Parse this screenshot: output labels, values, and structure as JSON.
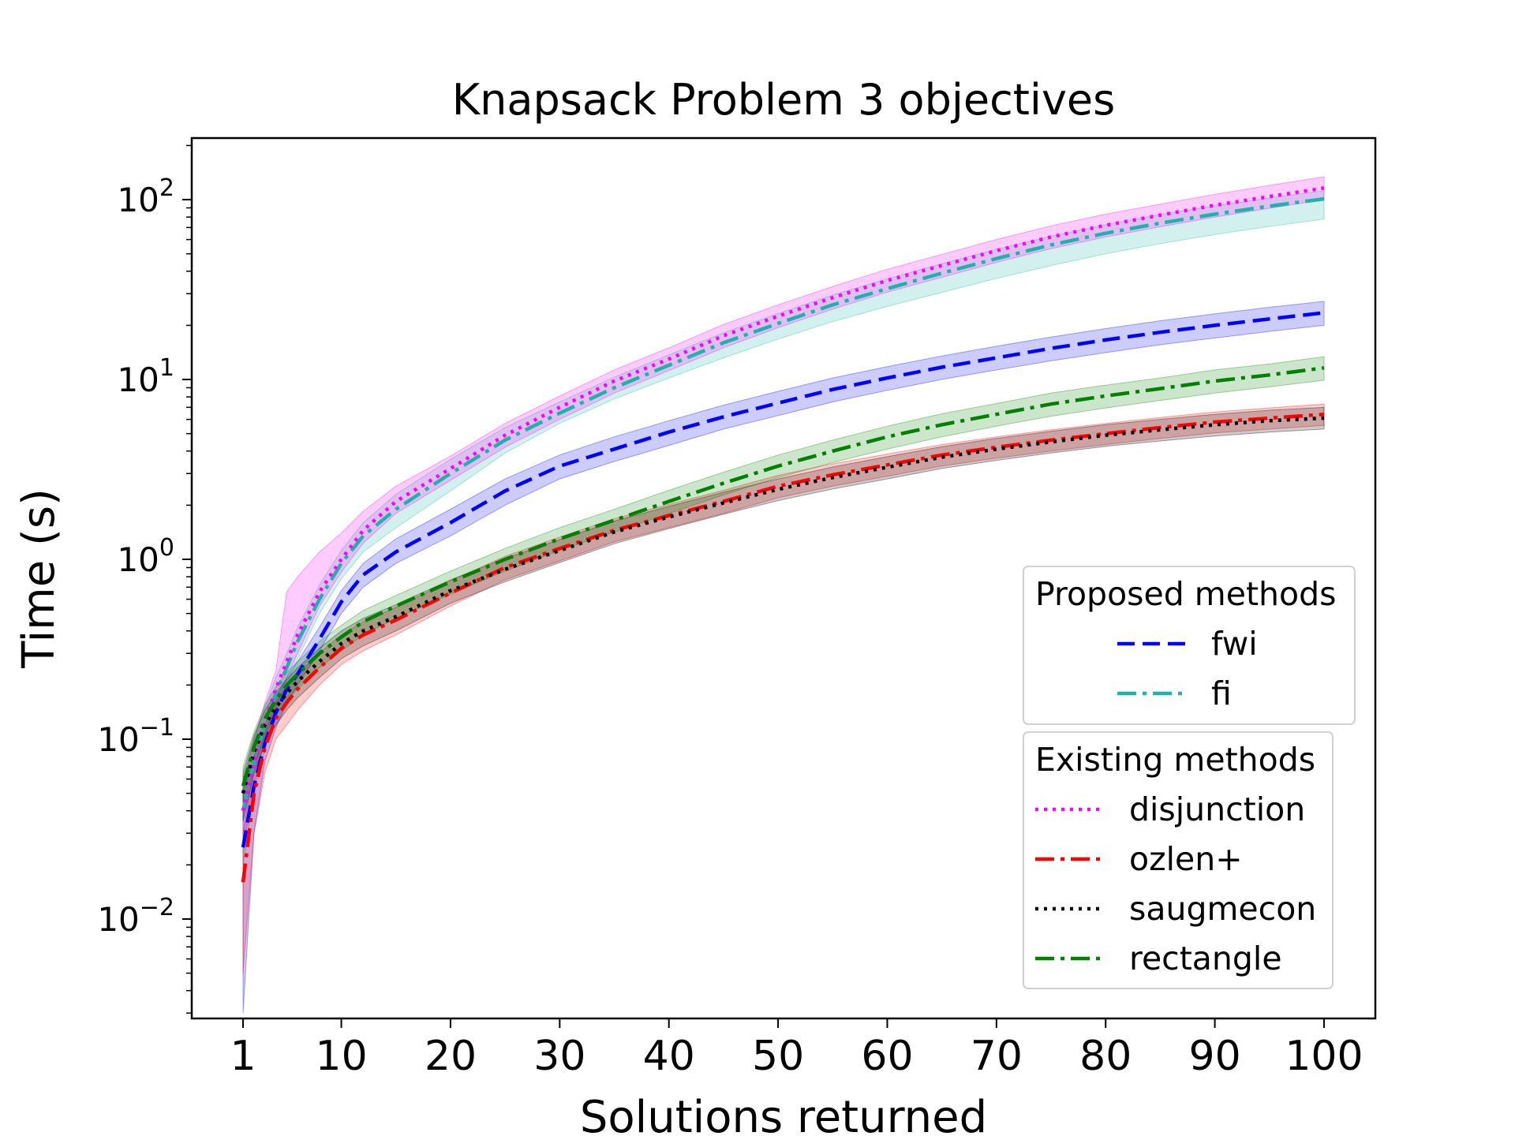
{
  "chart_data": {
    "type": "line",
    "title": "Knapsack Problem 3 objectives",
    "xlabel": "Solutions returned",
    "ylabel": "Time (s)",
    "xlim": [
      -3.7,
      104.7
    ],
    "ylim": [
      0.0028,
      220
    ],
    "yscale": "log",
    "x_ticks": [
      1,
      10,
      20,
      30,
      40,
      50,
      60,
      70,
      80,
      90,
      100
    ],
    "y_ticks": [
      {
        "value": 0.01,
        "base": "10",
        "exp": "−2"
      },
      {
        "value": 0.1,
        "base": "10",
        "exp": "−1"
      },
      {
        "value": 1,
        "base": "10",
        "exp": "0"
      },
      {
        "value": 10,
        "base": "10",
        "exp": "1"
      },
      {
        "value": 100,
        "base": "10",
        "exp": "2"
      }
    ],
    "grid": false,
    "x": [
      1,
      2,
      3,
      4,
      5,
      6,
      8,
      10,
      12,
      15,
      20,
      25,
      30,
      35,
      40,
      45,
      50,
      55,
      60,
      65,
      70,
      75,
      80,
      85,
      90,
      95,
      100
    ],
    "legend_groups": [
      {
        "title": "Proposed methods",
        "series_names": [
          "fwi",
          "fi"
        ]
      },
      {
        "title": "Existing methods",
        "series_names": [
          "disjunction",
          "ozlen+",
          "saugmecon",
          "rectangle"
        ]
      }
    ],
    "series": [
      {
        "name": "fwi",
        "color": "#0000ff",
        "style": "dashed",
        "values": [
          0.025,
          0.055,
          0.095,
          0.14,
          0.19,
          0.23,
          0.36,
          0.58,
          0.82,
          1.1,
          1.6,
          2.4,
          3.3,
          4.1,
          5.1,
          6.2,
          7.4,
          8.8,
          10.2,
          11.7,
          13.2,
          14.9,
          16.6,
          18.3,
          20.0,
          21.7,
          23.5
        ],
        "lower": [
          0.003,
          0.03,
          0.075,
          0.115,
          0.16,
          0.2,
          0.31,
          0.5,
          0.7,
          0.95,
          1.35,
          2.0,
          2.8,
          3.5,
          4.3,
          5.3,
          6.3,
          7.5,
          8.7,
          10.0,
          11.3,
          12.7,
          14.1,
          15.6,
          17.0,
          18.5,
          20.0
        ],
        "upper": [
          0.05,
          0.08,
          0.12,
          0.17,
          0.22,
          0.27,
          0.42,
          0.67,
          0.95,
          1.3,
          1.9,
          2.8,
          3.8,
          4.8,
          5.9,
          7.2,
          8.6,
          10.2,
          11.8,
          13.5,
          15.3,
          17.2,
          19.2,
          21.2,
          23.2,
          25.2,
          27.2
        ]
      },
      {
        "name": "fi",
        "color": "#20b2aa",
        "style": "dashdot",
        "values": [
          0.04,
          0.075,
          0.12,
          0.18,
          0.25,
          0.35,
          0.6,
          0.95,
          1.35,
          1.9,
          3.0,
          4.6,
          6.5,
          9.0,
          12.0,
          16.0,
          20.5,
          26.0,
          32.0,
          39.0,
          47.0,
          56.0,
          65.0,
          74.0,
          83.0,
          92.0,
          101.0
        ],
        "lower": [
          0.02,
          0.05,
          0.09,
          0.14,
          0.2,
          0.28,
          0.5,
          0.78,
          1.1,
          1.5,
          2.4,
          3.9,
          5.7,
          7.8,
          10.2,
          13.2,
          16.8,
          21.0,
          25.5,
          30.5,
          36.5,
          43.0,
          50.0,
          57.0,
          64.0,
          71.0,
          78.0
        ],
        "upper": [
          0.055,
          0.1,
          0.15,
          0.22,
          0.3,
          0.42,
          0.72,
          1.12,
          1.6,
          2.3,
          3.6,
          5.4,
          7.5,
          10.3,
          13.7,
          18.2,
          23.3,
          29.5,
          36.3,
          44.0,
          53.0,
          62.5,
          72.5,
          82.5,
          92.5,
          102.0,
          112.0
        ]
      },
      {
        "name": "disjunction",
        "color": "#ff00ff",
        "style": "dotted",
        "values": [
          0.04,
          0.075,
          0.125,
          0.19,
          0.27,
          0.38,
          0.66,
          1.0,
          1.45,
          2.1,
          3.2,
          4.9,
          7.0,
          9.8,
          13.0,
          17.5,
          22.5,
          28.5,
          35.5,
          43.0,
          52.0,
          62.0,
          72.0,
          82.0,
          93.0,
          104.0,
          116.0
        ],
        "lower": [
          0.025,
          0.055,
          0.1,
          0.15,
          0.22,
          0.3,
          0.55,
          0.85,
          1.23,
          1.8,
          2.75,
          4.2,
          6.0,
          8.4,
          11.2,
          15.0,
          19.4,
          24.6,
          30.6,
          37.0,
          44.8,
          53.4,
          62.0,
          70.6,
          80.0,
          89.5,
          100.0
        ],
        "upper": [
          0.06,
          0.1,
          0.16,
          0.24,
          0.66,
          0.8,
          1.1,
          1.4,
          1.85,
          2.55,
          3.75,
          5.7,
          8.1,
          11.3,
          15.0,
          20.2,
          26.0,
          32.9,
          41.0,
          49.6,
          60.0,
          71.5,
          83.0,
          94.5,
          107.0,
          120.0,
          134.0
        ]
      },
      {
        "name": "ozlen+",
        "color": "#ff0000",
        "style": "dashdot",
        "values": [
          0.016,
          0.05,
          0.09,
          0.13,
          0.16,
          0.19,
          0.25,
          0.32,
          0.38,
          0.46,
          0.65,
          0.9,
          1.15,
          1.45,
          1.75,
          2.1,
          2.55,
          2.95,
          3.35,
          3.8,
          4.2,
          4.6,
          5.0,
          5.4,
          5.8,
          6.1,
          6.4
        ],
        "lower": [
          0.005,
          0.03,
          0.065,
          0.1,
          0.12,
          0.145,
          0.2,
          0.26,
          0.31,
          0.38,
          0.55,
          0.77,
          0.98,
          1.25,
          1.5,
          1.8,
          2.2,
          2.55,
          2.9,
          3.3,
          3.65,
          4.0,
          4.35,
          4.7,
          5.05,
          5.3,
          5.55
        ],
        "upper": [
          0.03,
          0.07,
          0.11,
          0.16,
          0.2,
          0.23,
          0.3,
          0.38,
          0.45,
          0.54,
          0.76,
          1.04,
          1.33,
          1.68,
          2.02,
          2.42,
          2.93,
          3.4,
          3.85,
          4.35,
          4.8,
          5.25,
          5.7,
          6.15,
          6.6,
          6.95,
          7.3
        ]
      },
      {
        "name": "saugmecon",
        "color": "#000000",
        "style": "dotted",
        "values": [
          0.05,
          0.085,
          0.12,
          0.15,
          0.18,
          0.21,
          0.27,
          0.34,
          0.4,
          0.48,
          0.67,
          0.88,
          1.12,
          1.42,
          1.72,
          2.06,
          2.45,
          2.85,
          3.25,
          3.7,
          4.1,
          4.5,
          4.9,
          5.25,
          5.6,
          5.9,
          6.1
        ],
        "lower": [
          0.035,
          0.065,
          0.095,
          0.12,
          0.145,
          0.17,
          0.22,
          0.28,
          0.33,
          0.4,
          0.57,
          0.75,
          0.96,
          1.22,
          1.48,
          1.78,
          2.12,
          2.46,
          2.8,
          3.2,
          3.55,
          3.9,
          4.25,
          4.55,
          4.85,
          5.1,
          5.3
        ],
        "upper": [
          0.065,
          0.105,
          0.145,
          0.18,
          0.215,
          0.25,
          0.32,
          0.4,
          0.47,
          0.56,
          0.77,
          1.01,
          1.29,
          1.63,
          1.97,
          2.36,
          2.8,
          3.26,
          3.72,
          4.23,
          4.7,
          5.15,
          5.6,
          6.0,
          6.4,
          6.75,
          7.0
        ]
      },
      {
        "name": "rectangle",
        "color": "#008000",
        "style": "dashdot",
        "values": [
          0.055,
          0.09,
          0.13,
          0.165,
          0.2,
          0.23,
          0.3,
          0.37,
          0.45,
          0.55,
          0.75,
          1.0,
          1.3,
          1.65,
          2.1,
          2.65,
          3.3,
          4.0,
          4.8,
          5.6,
          6.4,
          7.3,
          8.1,
          8.9,
          9.8,
          10.6,
          11.6
        ],
        "lower": [
          0.04,
          0.07,
          0.105,
          0.135,
          0.165,
          0.19,
          0.25,
          0.31,
          0.38,
          0.47,
          0.64,
          0.86,
          1.12,
          1.42,
          1.8,
          2.28,
          2.85,
          3.45,
          4.1,
          4.8,
          5.5,
          6.25,
          6.95,
          7.65,
          8.4,
          9.1,
          9.9
        ],
        "upper": [
          0.07,
          0.11,
          0.155,
          0.195,
          0.235,
          0.27,
          0.35,
          0.43,
          0.52,
          0.63,
          0.86,
          1.15,
          1.5,
          1.9,
          2.42,
          3.05,
          3.8,
          4.6,
          5.5,
          6.45,
          7.35,
          8.4,
          9.3,
          10.2,
          11.3,
          12.2,
          13.4
        ]
      }
    ]
  }
}
